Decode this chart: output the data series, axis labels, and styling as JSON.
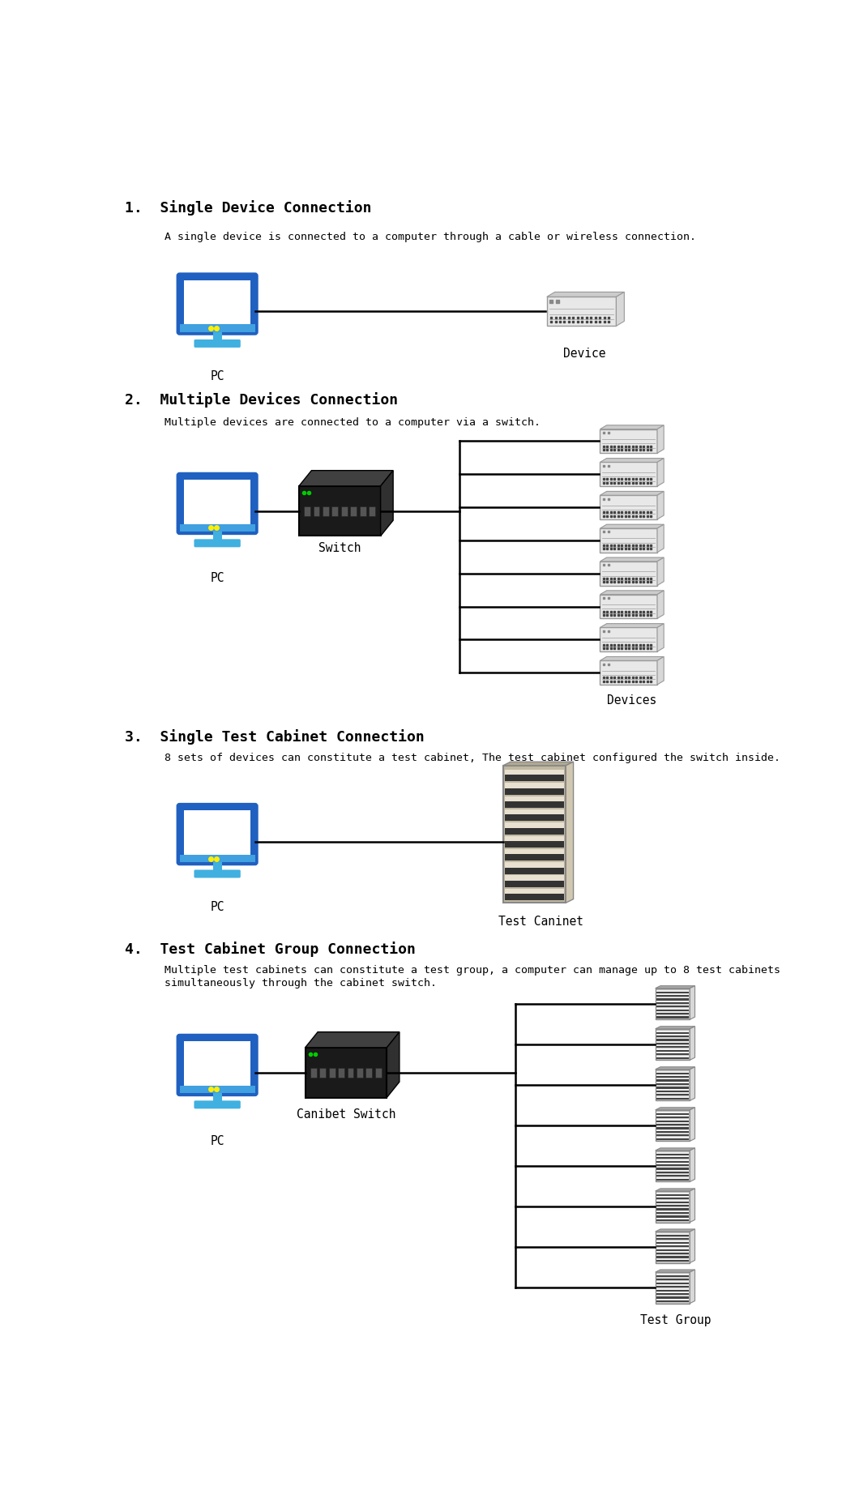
{
  "bg_color": "#ffffff",
  "section1_title": "1.  Single Device Connection",
  "section1_desc": "    A single device is connected to a computer through a cable or wireless connection.",
  "section2_title": "2.  Multiple Devices Connection",
  "section2_desc": "    Multiple devices are connected to a computer via a switch.",
  "section3_title": "3.  Single Test Cabinet Connection",
  "section3_desc": "    8 sets of devices can constitute a test cabinet, The test cabinet configured the switch inside.",
  "section4_title": "4.  Test Cabinet Group Connection",
  "section4_desc": "    Multiple test cabinets can constitute a test group, a computer can manage up to 8 test cabinets\n    simultaneously through the cabinet switch.",
  "label_pc": "PC",
  "label_device": "Device",
  "label_devices": "Devices",
  "label_switch": "Switch",
  "label_cabinet": "Test Caninet",
  "label_cabinet_switch": "Canibet Switch",
  "label_group": "Test Group",
  "monitor_blue_dark": "#2060c0",
  "monitor_blue_mid": "#40a0e0",
  "monitor_blue_light": "#60c8f0",
  "monitor_stand_color": "#40b0e0",
  "line_color": "#000000",
  "title_fontsize": 13,
  "desc_fontsize": 9.5,
  "label_fontsize": 10.5
}
